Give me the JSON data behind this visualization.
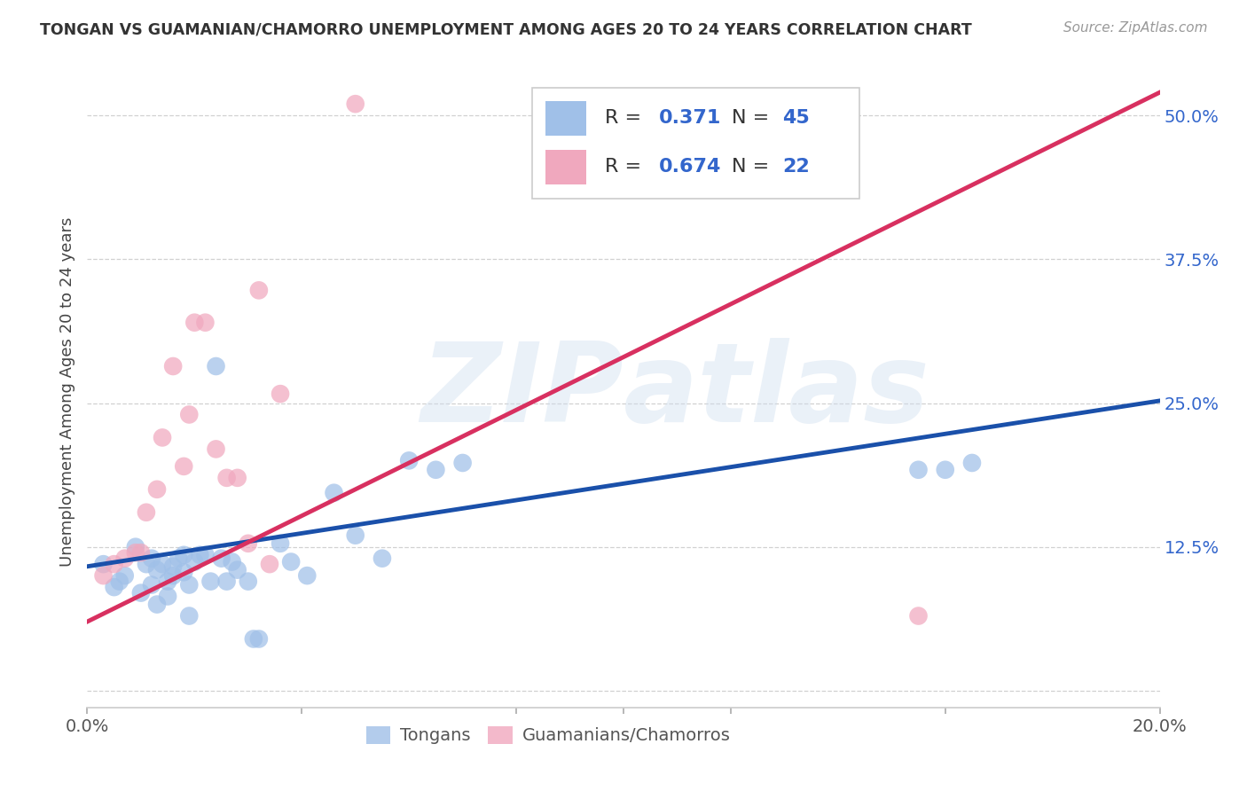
{
  "title": "TONGAN VS GUAMANIAN/CHAMORRO UNEMPLOYMENT AMONG AGES 20 TO 24 YEARS CORRELATION CHART",
  "source": "Source: ZipAtlas.com",
  "ylabel": "Unemployment Among Ages 20 to 24 years",
  "xlim": [
    0.0,
    0.2
  ],
  "ylim": [
    -0.015,
    0.535
  ],
  "blue_color": "#a0c0e8",
  "pink_color": "#f0a8be",
  "blue_line_color": "#1a50aa",
  "pink_line_color": "#d83060",
  "legend_R1": "0.371",
  "legend_N1": "45",
  "legend_R2": "0.674",
  "legend_N2": "22",
  "watermark_zip": "ZIP",
  "watermark_atlas": "atlas",
  "blue_line_x0": 0.0,
  "blue_line_y0": 0.108,
  "blue_line_x1": 0.2,
  "blue_line_y1": 0.252,
  "pink_line_x0": 0.0,
  "pink_line_y0": 0.06,
  "pink_line_x1": 0.2,
  "pink_line_y1": 0.52,
  "tongan_x": [
    0.003,
    0.005,
    0.006,
    0.007,
    0.009,
    0.01,
    0.011,
    0.012,
    0.012,
    0.013,
    0.013,
    0.014,
    0.015,
    0.015,
    0.016,
    0.016,
    0.017,
    0.018,
    0.018,
    0.019,
    0.019,
    0.02,
    0.021,
    0.022,
    0.023,
    0.024,
    0.025,
    0.026,
    0.027,
    0.028,
    0.03,
    0.031,
    0.032,
    0.036,
    0.038,
    0.041,
    0.046,
    0.05,
    0.055,
    0.06,
    0.065,
    0.07,
    0.155,
    0.16,
    0.165
  ],
  "tongan_y": [
    0.11,
    0.09,
    0.095,
    0.1,
    0.125,
    0.085,
    0.11,
    0.092,
    0.115,
    0.075,
    0.105,
    0.11,
    0.082,
    0.095,
    0.108,
    0.1,
    0.115,
    0.103,
    0.118,
    0.065,
    0.092,
    0.112,
    0.118,
    0.118,
    0.095,
    0.282,
    0.115,
    0.095,
    0.112,
    0.105,
    0.095,
    0.045,
    0.045,
    0.128,
    0.112,
    0.1,
    0.172,
    0.135,
    0.115,
    0.2,
    0.192,
    0.198,
    0.192,
    0.192,
    0.198
  ],
  "guam_x": [
    0.003,
    0.005,
    0.007,
    0.009,
    0.01,
    0.011,
    0.013,
    0.014,
    0.016,
    0.018,
    0.019,
    0.02,
    0.022,
    0.024,
    0.026,
    0.028,
    0.03,
    0.032,
    0.034,
    0.036,
    0.05,
    0.155
  ],
  "guam_y": [
    0.1,
    0.11,
    0.115,
    0.12,
    0.12,
    0.155,
    0.175,
    0.22,
    0.282,
    0.195,
    0.24,
    0.32,
    0.32,
    0.21,
    0.185,
    0.185,
    0.128,
    0.348,
    0.11,
    0.258,
    0.51,
    0.065
  ]
}
